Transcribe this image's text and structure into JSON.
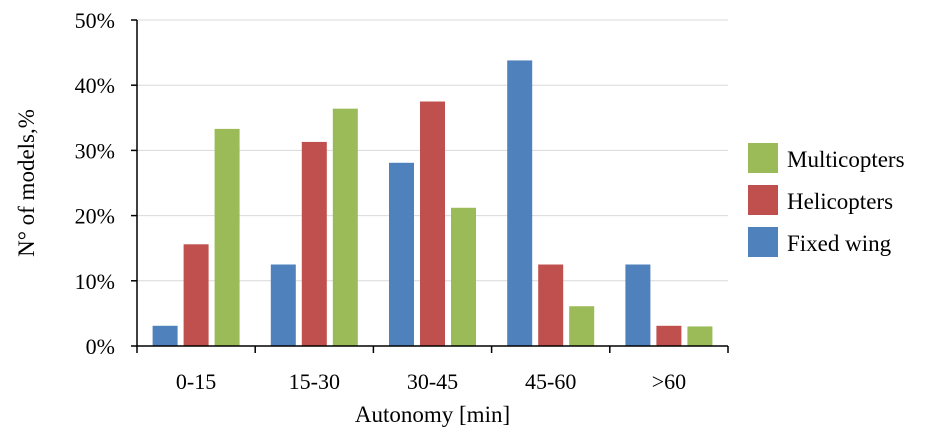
{
  "chart_data": {
    "type": "bar",
    "categories": [
      "0-15",
      "15-30",
      "30-45",
      "45-60",
      ">60"
    ],
    "series": [
      {
        "name": "Fixed wing",
        "color": "#4f81bd",
        "values": [
          3.1,
          12.5,
          28.1,
          43.8,
          12.5
        ]
      },
      {
        "name": "Helicopters",
        "color": "#c0504d",
        "values": [
          15.6,
          31.3,
          37.5,
          12.5,
          3.1
        ]
      },
      {
        "name": "Multicopters",
        "color": "#9bbb59",
        "values": [
          33.3,
          36.4,
          21.2,
          6.1,
          3.0
        ]
      }
    ],
    "legend_order": [
      "Multicopters",
      "Helicopters",
      "Fixed wing"
    ],
    "legend_position": "right",
    "xlabel": "Autonomy [min]",
    "ylabel": "N° of models,%",
    "ylim": [
      0,
      50
    ],
    "yticks": [
      0,
      10,
      20,
      30,
      40,
      50
    ],
    "ytick_labels": [
      "0%",
      "10%",
      "20%",
      "30%",
      "40%",
      "50%"
    ],
    "grid": true
  }
}
